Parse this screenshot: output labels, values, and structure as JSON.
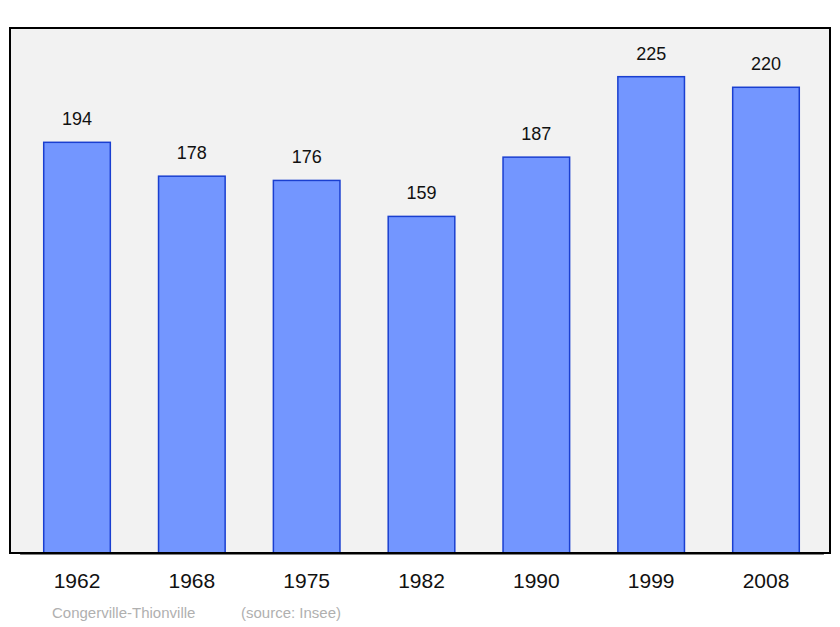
{
  "chart_data": {
    "type": "bar",
    "title": "Congerville-Thionville",
    "subtitle": "(source: Insee)",
    "categories": [
      "1962",
      "1968",
      "1975",
      "1982",
      "1990",
      "1999",
      "2008"
    ],
    "values": [
      194,
      178,
      176,
      159,
      187,
      225,
      220
    ],
    "color": "#7396ff",
    "ylim": [
      0,
      248
    ],
    "data_labels": true,
    "tick_labels": "x",
    "grid": false
  }
}
